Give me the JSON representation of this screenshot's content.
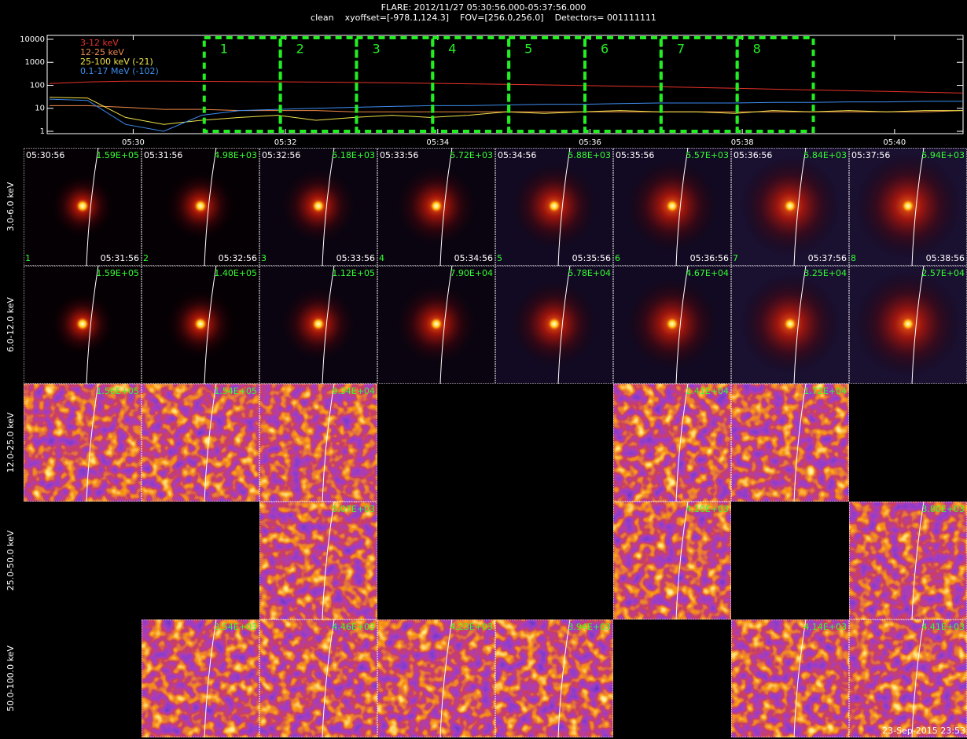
{
  "chart_data": {
    "type": "line",
    "title": "FLARE: 2012/11/27 05:30:56.000-05:37:56.000",
    "subtitle": "clean    xyoffset=[-978.1,124.3]    FOV=[256.0,256.0]    Detectors= 001111111",
    "x": [
      28.9,
      29.4,
      29.9,
      30.4,
      30.9,
      31.4,
      31.9,
      32.4,
      32.9,
      33.4,
      33.9,
      34.4,
      34.9,
      35.4,
      35.9,
      36.4,
      36.9,
      37.4,
      37.9,
      38.4,
      38.9,
      39.4,
      39.9,
      40.4,
      40.9
    ],
    "series": [
      {
        "name": "3-12 keV",
        "color": "#e8322a",
        "values": [
          120,
          140,
          150,
          150,
          148,
          145,
          142,
          138,
          133,
          128,
          122,
          116,
          110,
          104,
          98,
          92,
          86,
          80,
          74,
          68,
          63,
          58,
          54,
          50,
          46
        ]
      },
      {
        "name": "12-25 keV",
        "color": "#f08a4a",
        "values": [
          13,
          13,
          11,
          9,
          9,
          8,
          8,
          8,
          7,
          7,
          7,
          7,
          7,
          7,
          7,
          7,
          7,
          7,
          7,
          7,
          7,
          7,
          7,
          7,
          8
        ]
      },
      {
        "name": "25-100 keV (-21)",
        "color": "#f2e34a",
        "values": [
          30,
          28,
          4,
          2,
          3,
          4,
          5,
          3,
          4,
          5,
          4,
          5,
          7,
          6,
          7,
          8,
          7,
          7,
          6,
          8,
          7,
          8,
          7,
          8,
          8
        ]
      },
      {
        "name": "0.1-17 MeV (-102)",
        "color": "#3d8ef0",
        "values": [
          25,
          22,
          2,
          1,
          5,
          8,
          9,
          10,
          11,
          12,
          13,
          13,
          14,
          15,
          15,
          16,
          17,
          17,
          17,
          18,
          18,
          19,
          19,
          20,
          20
        ]
      }
    ],
    "xlim": [
      28.87,
      40.9
    ],
    "xticks": [
      {
        "value": 30,
        "label": "05:30"
      },
      {
        "value": 32,
        "label": "05:32"
      },
      {
        "value": 34,
        "label": "05:34"
      },
      {
        "value": 36,
        "label": "05:36"
      },
      {
        "value": 38,
        "label": "05:38"
      },
      {
        "value": 40,
        "label": "05:40"
      }
    ],
    "ylim": [
      0.79,
      14800
    ],
    "yticks": [
      1,
      10,
      100,
      1000,
      10000
    ],
    "log": true,
    "intervals": [
      {
        "label": "1",
        "start": 30.933,
        "end": 31.933
      },
      {
        "label": "2",
        "start": 31.933,
        "end": 32.933
      },
      {
        "label": "3",
        "start": 32.933,
        "end": 33.933
      },
      {
        "label": "4",
        "start": 33.933,
        "end": 34.933
      },
      {
        "label": "5",
        "start": 34.933,
        "end": 35.933
      },
      {
        "label": "6",
        "start": 35.933,
        "end": 36.933
      },
      {
        "label": "7",
        "start": 36.933,
        "end": 37.933
      },
      {
        "label": "8",
        "start": 37.933,
        "end": 38.933
      }
    ]
  },
  "image_grid": {
    "row_labels": [
      "3.0-6.0 keV",
      "6.0-12.0 keV",
      "12.0-25.0 keV",
      "25.0-50.0 keV",
      "50.0-100.0 keV"
    ],
    "rows": [
      {
        "cells": [
          {
            "max": "1.59E+05",
            "start": "05:30:56",
            "end": "05:31:56",
            "index": "1"
          },
          {
            "max": "4.98E+03",
            "start": "05:31:56",
            "end": "05:32:56",
            "index": "2"
          },
          {
            "max": "5.18E+03",
            "start": "05:32:56",
            "end": "05:33:56",
            "index": "3"
          },
          {
            "max": "5.72E+03",
            "start": "05:33:56",
            "end": "05:34:56",
            "index": "4"
          },
          {
            "max": "5.88E+03",
            "start": "05:34:56",
            "end": "05:35:56",
            "index": "5"
          },
          {
            "max": "5.57E+03",
            "start": "05:35:56",
            "end": "05:36:56",
            "index": "6"
          },
          {
            "max": "5.84E+03",
            "start": "05:36:56",
            "end": "05:37:56",
            "index": "7"
          },
          {
            "max": "5.94E+03",
            "start": "05:37:56",
            "end": "05:38:56",
            "index": "8"
          }
        ]
      },
      {
        "cells": [
          {
            "max": "1.59E+05"
          },
          {
            "max": "1.40E+05"
          },
          {
            "max": "1.12E+05"
          },
          {
            "max": "7.90E+04"
          },
          {
            "max": "5.78E+04"
          },
          {
            "max": "4.67E+04"
          },
          {
            "max": "3.25E+04"
          },
          {
            "max": "2.57E+04"
          }
        ]
      },
      {
        "cells": [
          {
            "max": "1.56E+05"
          },
          {
            "max": "1.54E+05"
          },
          {
            "max": "9.34E+04"
          },
          null,
          null,
          {
            "max": "2.41E+04"
          },
          {
            "max": "1.72E+04"
          },
          null
        ]
      },
      {
        "cells": [
          null,
          null,
          {
            "max": "5.07E+03"
          },
          null,
          null,
          {
            "max": "4.10E+03"
          },
          null,
          {
            "max": "3.80E+03"
          }
        ]
      },
      {
        "cells": [
          null,
          {
            "max": "3.54E+03"
          },
          {
            "max": "4.46E+03"
          },
          {
            "max": "4.23E+03"
          },
          {
            "max": "3.94E+03"
          },
          null,
          {
            "max": "4.14E+03"
          },
          {
            "max": "4.41E+03"
          }
        ]
      }
    ]
  },
  "footer": "23-Sep-2015 23:53"
}
